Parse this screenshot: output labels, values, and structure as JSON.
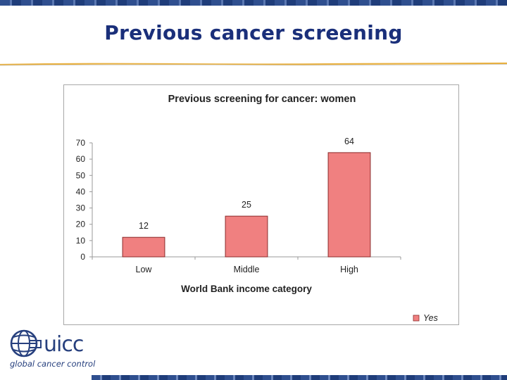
{
  "slide": {
    "title": "Previous cancer screening"
  },
  "logo": {
    "wordmark": "uicc",
    "tagline": "global cancer control"
  },
  "colors": {
    "title": "#1a2f7a",
    "bar_fill": "#f08080",
    "bar_stroke": "#8b2b2b",
    "rule": "#e8b040",
    "band": "#2f4f8f"
  },
  "chart_data": {
    "type": "bar",
    "title": "Previous screening for cancer: women",
    "xlabel": "World Bank income category",
    "ylabel": "",
    "categories": [
      "Low",
      "Middle",
      "High"
    ],
    "series": [
      {
        "name": "Yes",
        "values": [
          12,
          25,
          64
        ]
      }
    ],
    "ylim": [
      0,
      70
    ],
    "yticks": [
      0,
      10,
      20,
      30,
      40,
      50,
      60,
      70
    ],
    "grid": false,
    "data_labels": true,
    "legend_position": "bottom-right"
  }
}
